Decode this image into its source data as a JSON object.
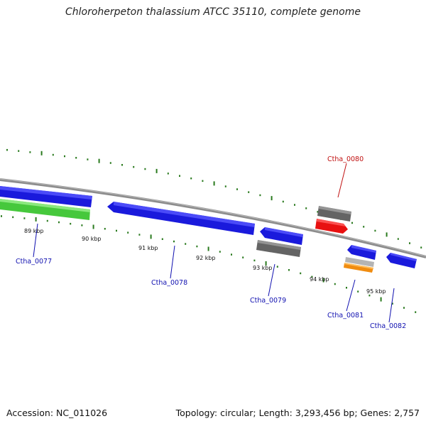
{
  "title": "Chloroherpeton thalassium ATCC 35110, complete genome",
  "footer": {
    "accession": "Accession: NC_011026",
    "summary": "Topology: circular; Length: 3,293,456 bp; Genes: 2,757"
  },
  "colors": {
    "backbone": "#8c8c8c",
    "tick": "#2a7a1e",
    "gene_blue": "#1a1adc",
    "gene_green": "#46c83c",
    "gene_gray": "#646464",
    "gene_red": "#e81010",
    "gene_orange": "#f08c10",
    "gene_lightgray": "#b4b4b4",
    "label_blue": "#1010b0",
    "label_red": "#c01010"
  },
  "position_labels": [
    "89 kbp",
    "90 kbp",
    "91 kbp",
    "92 kbp",
    "93 kbp",
    "94 kbp",
    "95 kbp"
  ],
  "gene_labels": [
    {
      "text": "Ctha_0077",
      "color": "label_blue"
    },
    {
      "text": "Ctha_0078",
      "color": "label_blue"
    },
    {
      "text": "Ctha_0079",
      "color": "label_blue"
    },
    {
      "text": "Ctha_0080",
      "color": "label_red"
    },
    {
      "text": "Ctha_0081",
      "color": "label_blue"
    },
    {
      "text": "Ctha_0082",
      "color": "label_blue"
    }
  ]
}
